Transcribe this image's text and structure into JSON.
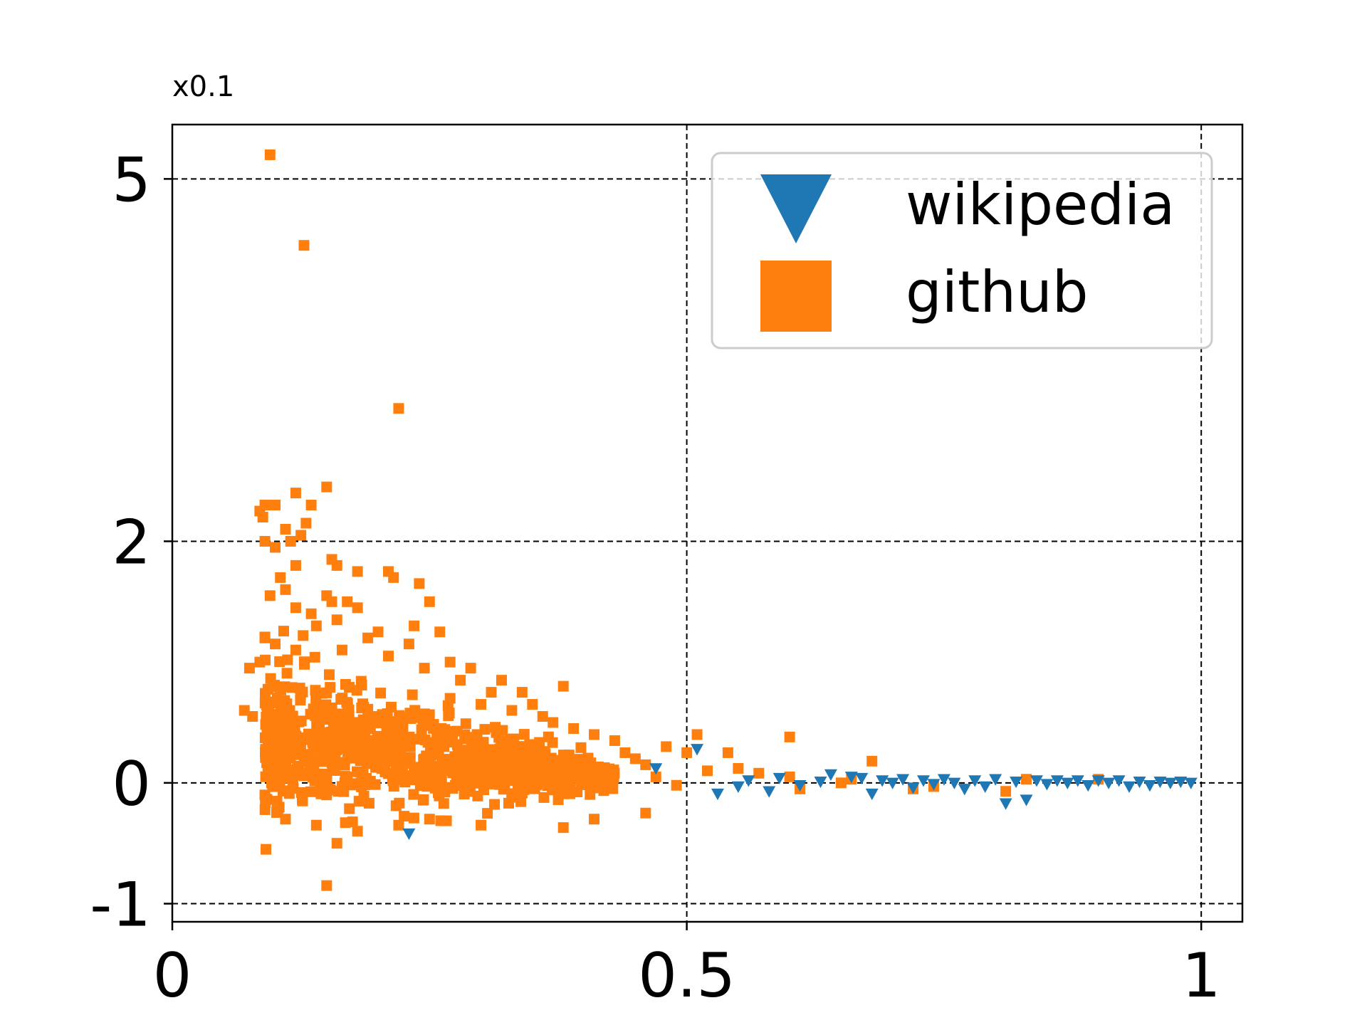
{
  "chart_data": {
    "type": "scatter",
    "title": "",
    "xlabel": "",
    "ylabel": "",
    "y_multiplier_label": "x0.1",
    "xlim": [
      0,
      1.04
    ],
    "ylim": [
      -1.15,
      5.45
    ],
    "x_ticks": [
      0,
      0.5,
      1
    ],
    "x_tick_labels": [
      "0",
      "0.5",
      "1"
    ],
    "y_ticks": [
      -1,
      0,
      2,
      5
    ],
    "y_tick_labels": [
      "-1",
      "0",
      "2",
      "5"
    ],
    "grid": true,
    "grid_style": "dashed",
    "legend_position": "top-right",
    "series": [
      {
        "name": "wikipedia",
        "marker": "triangle-down",
        "color": "#1f77b4",
        "points": [
          [
            0.23,
            -0.42
          ],
          [
            0.47,
            0.12
          ],
          [
            0.51,
            0.28
          ],
          [
            0.53,
            -0.09
          ],
          [
            0.55,
            -0.03
          ],
          [
            0.56,
            0.02
          ],
          [
            0.58,
            -0.07
          ],
          [
            0.59,
            0.04
          ],
          [
            0.61,
            -0.02
          ],
          [
            0.63,
            0.01
          ],
          [
            0.64,
            0.07
          ],
          [
            0.66,
            0.05
          ],
          [
            0.67,
            0.04
          ],
          [
            0.68,
            -0.09
          ],
          [
            0.69,
            0.02
          ],
          [
            0.7,
            0.0
          ],
          [
            0.71,
            0.03
          ],
          [
            0.72,
            -0.04
          ],
          [
            0.73,
            0.02
          ],
          [
            0.74,
            -0.01
          ],
          [
            0.75,
            0.03
          ],
          [
            0.76,
            0.0
          ],
          [
            0.77,
            -0.05
          ],
          [
            0.78,
            0.02
          ],
          [
            0.79,
            -0.03
          ],
          [
            0.8,
            0.03
          ],
          [
            0.81,
            -0.17
          ],
          [
            0.82,
            0.01
          ],
          [
            0.83,
            -0.14
          ],
          [
            0.84,
            0.02
          ],
          [
            0.85,
            -0.01
          ],
          [
            0.86,
            0.02
          ],
          [
            0.87,
            0.0
          ],
          [
            0.88,
            0.02
          ],
          [
            0.89,
            -0.02
          ],
          [
            0.9,
            0.02
          ],
          [
            0.91,
            0.0
          ],
          [
            0.92,
            0.02
          ],
          [
            0.93,
            -0.03
          ],
          [
            0.94,
            0.01
          ],
          [
            0.95,
            -0.02
          ],
          [
            0.96,
            0.01
          ],
          [
            0.97,
            0.0
          ],
          [
            0.98,
            0.01
          ],
          [
            0.99,
            0.0
          ]
        ]
      },
      {
        "name": "github",
        "marker": "square",
        "color": "#ff7f0e",
        "points": [
          [
            0.095,
            5.2
          ],
          [
            0.128,
            4.45
          ],
          [
            0.22,
            3.1
          ],
          [
            0.15,
            2.45
          ],
          [
            0.12,
            2.4
          ],
          [
            0.09,
            2.3
          ],
          [
            0.085,
            2.25
          ],
          [
            0.1,
            2.3
          ],
          [
            0.088,
            2.2
          ],
          [
            0.11,
            2.1
          ],
          [
            0.13,
            2.15
          ],
          [
            0.135,
            2.3
          ],
          [
            0.125,
            2.05
          ],
          [
            0.09,
            2.0
          ],
          [
            0.1,
            1.95
          ],
          [
            0.115,
            2.0
          ],
          [
            0.12,
            1.8
          ],
          [
            0.105,
            1.7
          ],
          [
            0.155,
            1.85
          ],
          [
            0.16,
            1.8
          ],
          [
            0.18,
            1.75
          ],
          [
            0.21,
            1.75
          ],
          [
            0.215,
            1.7
          ],
          [
            0.24,
            1.65
          ],
          [
            0.095,
            1.55
          ],
          [
            0.11,
            1.6
          ],
          [
            0.075,
            0.95
          ],
          [
            0.085,
            1.0
          ],
          [
            0.12,
            1.45
          ],
          [
            0.135,
            1.4
          ],
          [
            0.15,
            1.55
          ],
          [
            0.155,
            1.5
          ],
          [
            0.17,
            1.5
          ],
          [
            0.18,
            1.45
          ],
          [
            0.25,
            1.5
          ],
          [
            0.235,
            1.3
          ],
          [
            0.26,
            1.25
          ],
          [
            0.14,
            1.3
          ],
          [
            0.16,
            1.35
          ],
          [
            0.2,
            1.25
          ],
          [
            0.19,
            1.2
          ],
          [
            0.23,
            1.15
          ],
          [
            0.09,
            1.2
          ],
          [
            0.1,
            1.15
          ],
          [
            0.12,
            1.1
          ],
          [
            0.165,
            1.1
          ],
          [
            0.21,
            1.05
          ],
          [
            0.245,
            0.95
          ],
          [
            0.27,
            1.0
          ],
          [
            0.29,
            0.95
          ],
          [
            0.32,
            0.85
          ],
          [
            0.38,
            0.8
          ],
          [
            0.34,
            0.75
          ],
          [
            0.35,
            0.65
          ],
          [
            0.31,
            0.75
          ],
          [
            0.28,
            0.85
          ],
          [
            0.27,
            0.7
          ],
          [
            0.3,
            0.65
          ],
          [
            0.33,
            0.6
          ],
          [
            0.36,
            0.55
          ],
          [
            0.37,
            0.5
          ],
          [
            0.39,
            0.45
          ],
          [
            0.41,
            0.4
          ],
          [
            0.43,
            0.35
          ],
          [
            0.44,
            0.25
          ],
          [
            0.45,
            0.2
          ],
          [
            0.46,
            0.15
          ],
          [
            0.48,
            0.3
          ],
          [
            0.5,
            0.25
          ],
          [
            0.51,
            0.4
          ],
          [
            0.54,
            0.25
          ],
          [
            0.6,
            0.38
          ],
          [
            0.68,
            0.18
          ],
          [
            0.47,
            0.05
          ],
          [
            0.49,
            -0.02
          ],
          [
            0.52,
            0.1
          ],
          [
            0.55,
            0.12
          ],
          [
            0.57,
            0.08
          ],
          [
            0.6,
            0.05
          ],
          [
            0.61,
            -0.05
          ],
          [
            0.65,
            0.0
          ],
          [
            0.66,
            0.03
          ],
          [
            0.72,
            -0.05
          ],
          [
            0.74,
            -0.03
          ],
          [
            0.83,
            0.03
          ],
          [
            0.81,
            -0.07
          ],
          [
            0.9,
            0.03
          ],
          [
            0.46,
            -0.25
          ],
          [
            0.41,
            -0.3
          ],
          [
            0.38,
            -0.37
          ],
          [
            0.3,
            -0.35
          ],
          [
            0.25,
            -0.3
          ],
          [
            0.22,
            -0.35
          ],
          [
            0.18,
            -0.4
          ],
          [
            0.16,
            -0.5
          ],
          [
            0.15,
            -0.85
          ],
          [
            0.14,
            -0.35
          ],
          [
            0.11,
            -0.3
          ],
          [
            0.09,
            -0.1
          ],
          [
            0.07,
            0.6
          ],
          [
            0.078,
            0.55
          ],
          [
            0.092,
            0.4
          ],
          [
            0.1,
            0.35
          ],
          [
            0.105,
            0.25
          ],
          [
            0.095,
            0.1
          ]
        ],
        "dense_cluster": {
          "x_range": [
            0.09,
            0.43
          ],
          "y_center": 0.35,
          "y_spread": 0.45,
          "count": 900
        }
      }
    ]
  }
}
